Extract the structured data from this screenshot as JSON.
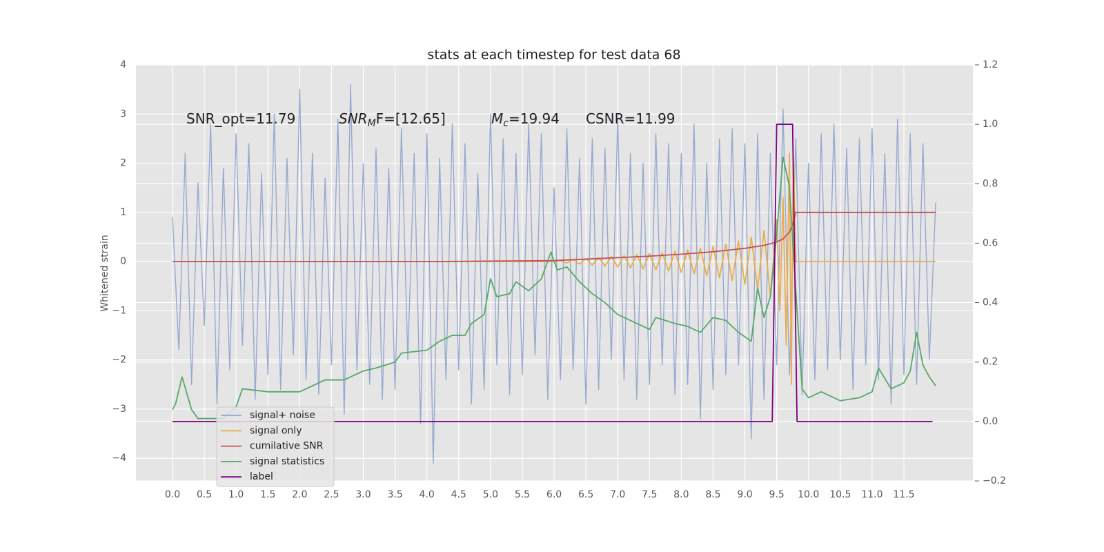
{
  "chart_data": {
    "type": "line",
    "title": "stats at each timestep for test data 68",
    "ylabel": "Whitened strain",
    "annotations": [
      [
        "SNR_opt=11.79"
      ],
      [
        "SNR",
        "M",
        "F=[12.65]"
      ],
      [
        "M",
        "c",
        "=19.94"
      ],
      [
        "CSNR=11.99"
      ]
    ],
    "xlim": [
      -0.575,
      12.585
    ],
    "ylim": [
      -4.46,
      4
    ],
    "y2lim": [
      -0.2,
      1.2
    ],
    "xticks": [
      {
        "value": 0,
        "label": "0.0"
      },
      {
        "value": 0.5,
        "label": "0.5"
      },
      {
        "value": 1,
        "label": "1.0"
      },
      {
        "value": 1.5,
        "label": "1.5"
      },
      {
        "value": 2,
        "label": "2.0"
      },
      {
        "value": 2.5,
        "label": "2.5"
      },
      {
        "value": 3,
        "label": "3.0"
      },
      {
        "value": 3.5,
        "label": "3.5"
      },
      {
        "value": 4,
        "label": "4.0"
      },
      {
        "value": 4.5,
        "label": "4.5"
      },
      {
        "value": 5,
        "label": "5.0"
      },
      {
        "value": 5.5,
        "label": "5.5"
      },
      {
        "value": 6,
        "label": "6.0"
      },
      {
        "value": 6.5,
        "label": "6.5"
      },
      {
        "value": 7,
        "label": "7.0"
      },
      {
        "value": 7.5,
        "label": "7.5"
      },
      {
        "value": 8,
        "label": "8.0"
      },
      {
        "value": 8.5,
        "label": "8.5"
      },
      {
        "value": 9,
        "label": "9.0"
      },
      {
        "value": 9.5,
        "label": "9.5"
      },
      {
        "value": 10,
        "label": "10.0"
      },
      {
        "value": 10.5,
        "label": "10.5"
      },
      {
        "value": 11,
        "label": "11.0"
      },
      {
        "value": 11.5,
        "label": "11.5"
      }
    ],
    "yticks": [
      {
        "value": -4,
        "label": "−4"
      },
      {
        "value": -3,
        "label": "−3"
      },
      {
        "value": -2,
        "label": "−2"
      },
      {
        "value": -1,
        "label": "−1"
      },
      0,
      1,
      2,
      3,
      4
    ],
    "y2ticks": [
      {
        "value": -0.2,
        "label": "−0.2"
      },
      {
        "value": 0,
        "label": "0.0"
      },
      {
        "value": 0.2,
        "label": "0.2"
      },
      {
        "value": 0.4,
        "label": "0.4"
      },
      {
        "value": 0.6,
        "label": "0.6"
      },
      {
        "value": 0.8,
        "label": "0.8"
      },
      {
        "value": 1,
        "label": "1.0"
      },
      {
        "value": 1.2,
        "label": "1.2"
      }
    ],
    "grid": true,
    "legend": "lower left",
    "series": [
      {
        "name": "signal+ noise",
        "color": "#92a5cd",
        "x": [
          0.0,
          0.1,
          0.2,
          0.3,
          0.4,
          0.5,
          0.6,
          0.7,
          0.8,
          0.9,
          1.0,
          1.1,
          1.2,
          1.3,
          1.4,
          1.5,
          1.6,
          1.7,
          1.8,
          1.9,
          2.0,
          2.1,
          2.2,
          2.3,
          2.4,
          2.5,
          2.6,
          2.7,
          2.8,
          2.9,
          3.0,
          3.1,
          3.2,
          3.3,
          3.4,
          3.5,
          3.6,
          3.7,
          3.8,
          3.9,
          4.0,
          4.1,
          4.2,
          4.3,
          4.4,
          4.5,
          4.6,
          4.7,
          4.8,
          4.9,
          5.0,
          5.1,
          5.2,
          5.3,
          5.4,
          5.5,
          5.6,
          5.7,
          5.8,
          5.9,
          6.0,
          6.1,
          6.2,
          6.3,
          6.4,
          6.5,
          6.6,
          6.7,
          6.8,
          6.9,
          7.0,
          7.1,
          7.2,
          7.3,
          7.4,
          7.5,
          7.6,
          7.7,
          7.8,
          7.9,
          8.0,
          8.1,
          8.2,
          8.3,
          8.4,
          8.5,
          8.6,
          8.7,
          8.8,
          8.9,
          9.0,
          9.1,
          9.2,
          9.3,
          9.4,
          9.5,
          9.6,
          9.7,
          9.8,
          9.9,
          10.0,
          10.1,
          10.2,
          10.3,
          10.4,
          10.5,
          10.6,
          10.7,
          10.8,
          10.9,
          11.0,
          11.1,
          11.2,
          11.3,
          11.4,
          11.5,
          11.6,
          11.7,
          11.8,
          11.9,
          12.0
        ],
        "values": [
          0.9,
          -1.8,
          2.2,
          -2.5,
          1.6,
          -1.3,
          2.8,
          -2.9,
          1.9,
          -2.2,
          2.6,
          -1.7,
          2.4,
          -2.8,
          1.8,
          -2.3,
          3.0,
          -2.6,
          2.1,
          -1.9,
          3.5,
          -2.4,
          2.2,
          -2.7,
          1.7,
          -2.1,
          2.9,
          -3.1,
          3.6,
          -2.2,
          2.0,
          -2.5,
          2.3,
          -2.8,
          1.9,
          -2.6,
          2.7,
          -2.0,
          2.2,
          -3.3,
          2.6,
          -4.1,
          2.1,
          -2.4,
          2.8,
          -2.2,
          2.4,
          -2.9,
          1.8,
          -2.6,
          3.0,
          -2.1,
          2.5,
          -2.7,
          2.2,
          -2.3,
          2.8,
          -1.9,
          2.6,
          -2.8,
          1.5,
          -2.4,
          2.7,
          -2.2,
          2.1,
          -2.9,
          2.5,
          -2.6,
          2.3,
          -2.0,
          2.9,
          -2.4,
          2.2,
          -2.8,
          2.0,
          -2.5,
          2.6,
          -2.1,
          2.4,
          -2.7,
          2.2,
          -2.5,
          2.8,
          -3.2,
          2.0,
          -2.6,
          2.5,
          -2.3,
          2.7,
          -2.1,
          2.4,
          -3.6,
          2.6,
          -2.8,
          2.2,
          -2.1,
          3.1,
          -2.3,
          2.5,
          -2.7,
          2.0,
          -2.4,
          2.6,
          -2.2,
          2.8,
          -2.0,
          2.3,
          -2.6,
          2.5,
          -2.1,
          2.7,
          -2.4,
          2.2,
          -2.9,
          2.9,
          -2.3,
          2.6,
          -2.5,
          2.4,
          -2.0,
          1.2
        ]
      },
      {
        "name": "signal only",
        "color": "#e9ad4f",
        "x": [
          0.0,
          6.0,
          6.1,
          6.2,
          6.3,
          6.4,
          6.5,
          6.6,
          6.7,
          6.8,
          6.9,
          7.0,
          7.1,
          7.2,
          7.3,
          7.4,
          7.5,
          7.6,
          7.7,
          7.8,
          7.9,
          8.0,
          8.1,
          8.2,
          8.3,
          8.4,
          8.5,
          8.6,
          8.7,
          8.8,
          8.9,
          9.0,
          9.1,
          9.2,
          9.3,
          9.4,
          9.5,
          9.55,
          9.6,
          9.65,
          9.7,
          9.73,
          9.76,
          9.8,
          12.0
        ],
        "values": [
          0,
          0,
          0.02,
          -0.03,
          0.04,
          -0.05,
          0.06,
          -0.07,
          0.08,
          -0.09,
          0.1,
          -0.11,
          0.12,
          -0.13,
          0.14,
          -0.15,
          0.16,
          -0.17,
          0.18,
          -0.19,
          0.21,
          -0.22,
          0.24,
          -0.25,
          0.27,
          -0.29,
          0.31,
          -0.33,
          0.36,
          -0.39,
          0.42,
          -0.46,
          0.5,
          -0.56,
          0.63,
          -0.72,
          0.85,
          -1.0,
          1.3,
          -1.7,
          2.2,
          -2.5,
          2.3,
          0,
          0
        ]
      },
      {
        "name": "cumilative SNR",
        "color": "#c44e52",
        "x": [
          0,
          1,
          2,
          3,
          4,
          5,
          6,
          6.5,
          7,
          7.5,
          8,
          8.5,
          9,
          9.3,
          9.5,
          9.6,
          9.7,
          9.75,
          9.8,
          10,
          11,
          12
        ],
        "values": [
          0,
          0,
          0,
          0,
          0,
          0.01,
          0.02,
          0.05,
          0.08,
          0.11,
          0.15,
          0.2,
          0.27,
          0.33,
          0.4,
          0.46,
          0.6,
          0.75,
          1.0,
          1.0,
          1.0,
          1.0
        ]
      },
      {
        "name": "signal statistics",
        "color": "#55a868",
        "axis": "y2",
        "x": [
          0.0,
          0.05,
          0.15,
          0.3,
          0.4,
          0.6,
          0.8,
          1.0,
          1.1,
          1.5,
          2.0,
          2.2,
          2.4,
          2.7,
          3.0,
          3.2,
          3.5,
          3.6,
          4.0,
          4.2,
          4.4,
          4.6,
          4.7,
          4.9,
          5.0,
          5.1,
          5.3,
          5.4,
          5.6,
          5.8,
          5.95,
          6.05,
          6.2,
          6.4,
          6.6,
          6.8,
          7.0,
          7.3,
          7.5,
          7.6,
          7.9,
          8.1,
          8.3,
          8.5,
          8.7,
          8.9,
          9.1,
          9.2,
          9.3,
          9.4,
          9.5,
          9.6,
          9.7,
          9.8,
          9.9,
          10.0,
          10.2,
          10.5,
          10.8,
          11.0,
          11.1,
          11.3,
          11.5,
          11.6,
          11.7,
          11.8,
          11.9,
          12.0
        ],
        "values": [
          0.04,
          0.06,
          0.15,
          0.04,
          0.01,
          0.01,
          0.01,
          0.05,
          0.11,
          0.1,
          0.1,
          0.12,
          0.14,
          0.14,
          0.17,
          0.18,
          0.2,
          0.23,
          0.24,
          0.27,
          0.29,
          0.29,
          0.33,
          0.36,
          0.48,
          0.42,
          0.43,
          0.47,
          0.44,
          0.48,
          0.57,
          0.51,
          0.52,
          0.47,
          0.43,
          0.4,
          0.36,
          0.33,
          0.31,
          0.35,
          0.33,
          0.32,
          0.3,
          0.35,
          0.34,
          0.3,
          0.27,
          0.45,
          0.35,
          0.42,
          0.63,
          0.89,
          0.79,
          0.44,
          0.11,
          0.08,
          0.1,
          0.07,
          0.08,
          0.1,
          0.18,
          0.11,
          0.13,
          0.17,
          0.3,
          0.19,
          0.15,
          0.12
        ]
      },
      {
        "name": "label",
        "color": "#800080",
        "axis": "y2",
        "x": [
          0,
          9.43,
          9.5,
          9.75,
          9.82,
          11.95
        ],
        "values": [
          0,
          0,
          1,
          1,
          0,
          0
        ]
      }
    ]
  }
}
